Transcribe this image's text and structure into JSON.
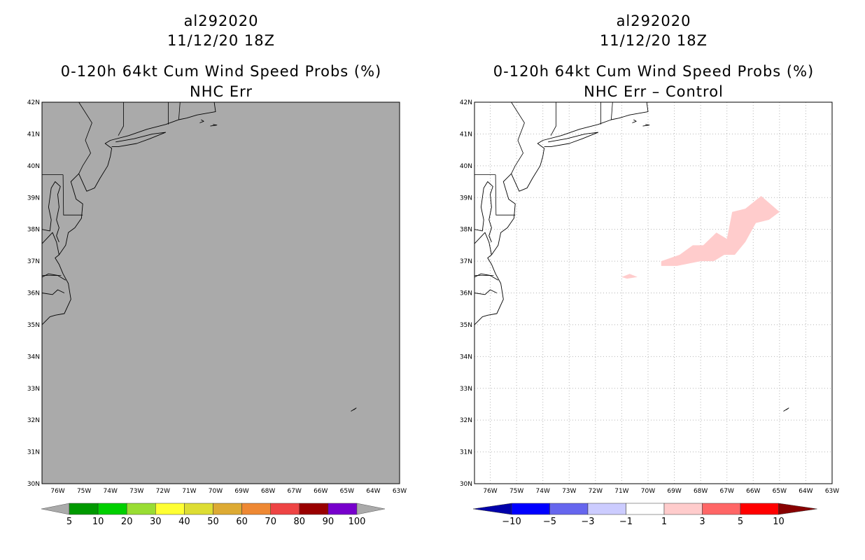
{
  "left_panel": {
    "storm_id": "al292020",
    "datetime": "11/12/20 18Z",
    "product_title": "0-120h 64kt Cum Wind Speed Probs (%)",
    "subtitle": "NHC Err",
    "field_color": "#aaaaaa",
    "colorbar": {
      "colors": [
        "#009900",
        "#00d000",
        "#99dd33",
        "#ffff33",
        "#dddd33",
        "#ddaa33",
        "#ee8833",
        "#ee4444",
        "#990000",
        "#7700cc"
      ],
      "end_color": "#aaaaaa",
      "labels": [
        "5",
        "10",
        "20",
        "30",
        "40",
        "50",
        "60",
        "70",
        "80",
        "90",
        "100"
      ]
    }
  },
  "right_panel": {
    "storm_id": "al292020",
    "datetime": "11/12/20 18Z",
    "product_title": "0-120h 64kt Cum Wind Speed Probs (%)",
    "subtitle": "NHC Err – Control",
    "positive_color": "#ffcccc",
    "colorbar": {
      "low_end_color": "#0000aa",
      "high_end_color": "#880000",
      "colors": [
        "#0000ff",
        "#6666ee",
        "#ccccff",
        "#ffffff",
        "#ffcccc",
        "#ff6666",
        "#ff0000"
      ],
      "labels": [
        "−10",
        "−5",
        "−3",
        "−1",
        "1",
        "3",
        "5",
        "10"
      ]
    }
  },
  "map_axes": {
    "lat_labels": [
      "42N",
      "41N",
      "40N",
      "39N",
      "38N",
      "37N",
      "36N",
      "35N",
      "34N",
      "33N",
      "32N",
      "31N",
      "30N"
    ],
    "lon_labels": [
      "76W",
      "75W",
      "74W",
      "73W",
      "72W",
      "71W",
      "70W",
      "69W",
      "68W",
      "67W",
      "66W",
      "65W",
      "64W",
      "63W"
    ],
    "lat_range": [
      30,
      42
    ],
    "lon_range": [
      -76.6,
      -63
    ]
  }
}
